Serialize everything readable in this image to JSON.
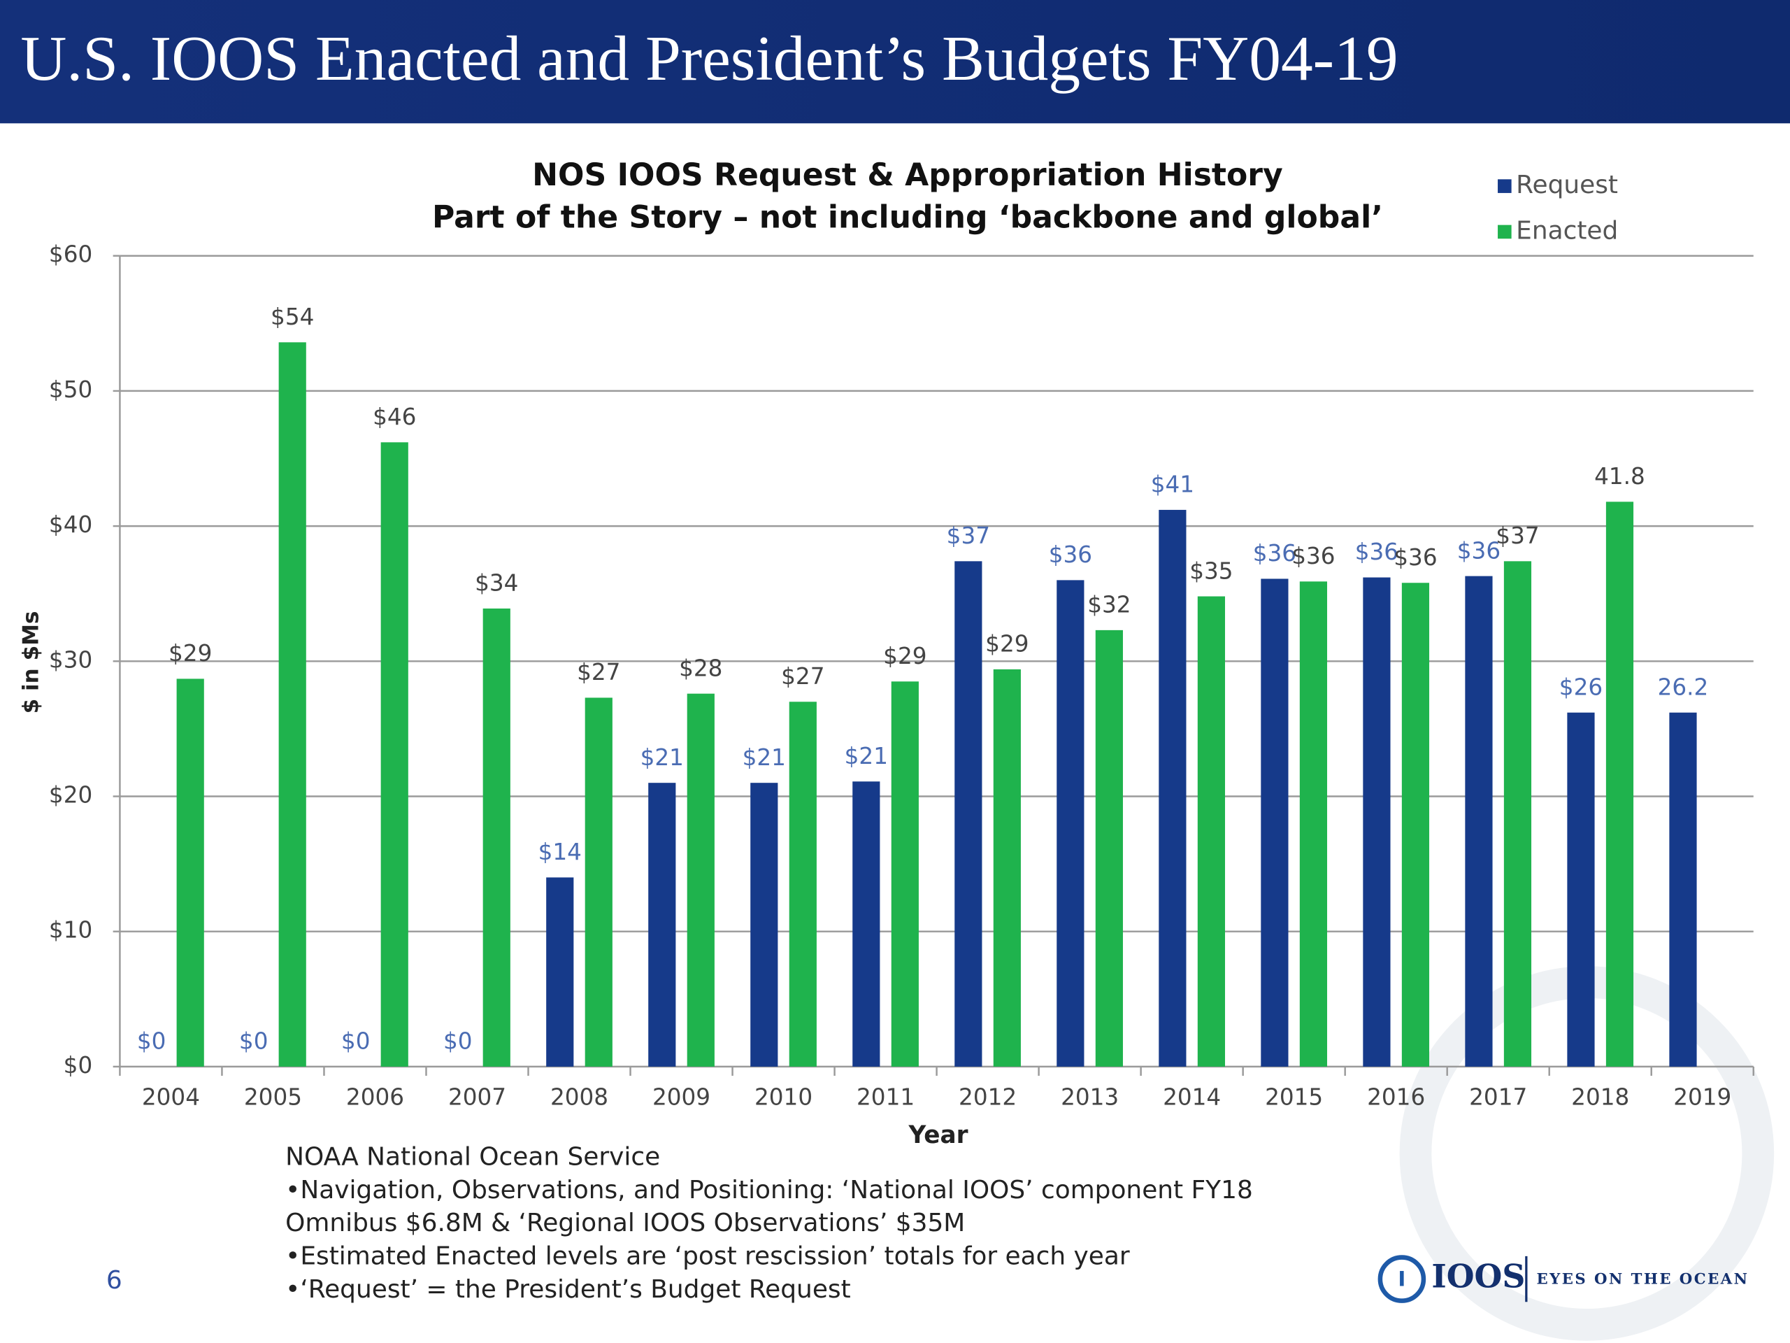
{
  "header": {
    "title": "U.S. IOOS Enacted and President’s Budgets FY04-19"
  },
  "chart_data": {
    "type": "bar",
    "title": "NOS IOOS Request & Appropriation History",
    "subtitle": "Part of the Story – not including ‘backbone and global’",
    "x_label": "Year",
    "y_label": "$ in $Ms",
    "categories": [
      "2004",
      "2005",
      "2006",
      "2007",
      "2008",
      "2009",
      "2010",
      "2011",
      "2012",
      "2013",
      "2014",
      "2015",
      "2016",
      "2017",
      "2018",
      "2019"
    ],
    "series": [
      {
        "name": "Request",
        "color": "#163a8a",
        "label_color": "#4a6cb3",
        "values": [
          0,
          0,
          0,
          0,
          14.0,
          21.0,
          21.0,
          21.1,
          37.4,
          36.0,
          41.2,
          36.1,
          36.2,
          36.3,
          26.2,
          26.2
        ],
        "value_labels": [
          "$0",
          "$0",
          "$0",
          "$0",
          "$14",
          "$21",
          "$21",
          "$21",
          "$37",
          "$36",
          "$41",
          "$36",
          "$36",
          "$36",
          "$26",
          "26.2"
        ]
      },
      {
        "name": "Enacted",
        "color": "#1fb34d",
        "label_color": "#444444",
        "values": [
          28.7,
          53.6,
          46.2,
          33.9,
          27.3,
          27.6,
          27.0,
          28.5,
          29.4,
          32.3,
          34.8,
          35.9,
          35.8,
          37.4,
          41.8,
          null
        ],
        "value_labels": [
          "$29",
          "$54",
          "$46",
          "$34",
          "$27",
          "$28",
          "$27",
          "$29",
          "$29",
          "$32",
          "$35",
          "$36",
          "$36",
          "$37",
          "41.8",
          null
        ]
      }
    ],
    "ylim": [
      0,
      60
    ],
    "yticks": [
      {
        "value": 0,
        "label": "$0"
      },
      {
        "value": 10,
        "label": "$10"
      },
      {
        "value": 20,
        "label": "$20"
      },
      {
        "value": 30,
        "label": "$30"
      },
      {
        "value": 40,
        "label": "$40"
      },
      {
        "value": 50,
        "label": "$50"
      },
      {
        "value": 60,
        "label": "$60"
      }
    ],
    "grid": true,
    "legend": "top-right"
  },
  "notes": {
    "lines": [
      "NOAA National Ocean Service",
      "•Navigation, Observations, and Positioning: ‘National IOOS’ component FY18",
      "Omnibus  $6.8M & ‘Regional IOOS Observations’ $35M",
      "•Estimated Enacted levels are ‘post rescission’ totals for each year",
      "•‘Request’ = the President’s Budget Request"
    ]
  },
  "page_number": "6",
  "logo": {
    "name": "IOOS",
    "tagline": "EYES ON THE OCEAN"
  }
}
